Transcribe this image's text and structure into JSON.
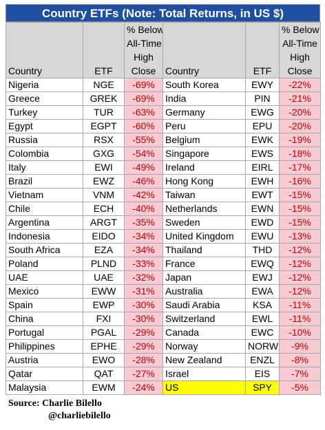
{
  "chart_data": {
    "type": "table",
    "title": "Country ETFs (Note: Total Returns, in US $)",
    "columns": [
      "Country",
      "ETF",
      "% Below All-Time High Close"
    ],
    "left": [
      {
        "country": "Nigeria",
        "etf": "NGE",
        "pct": "-69%"
      },
      {
        "country": "Greece",
        "etf": "GREK",
        "pct": "-69%"
      },
      {
        "country": "Turkey",
        "etf": "TUR",
        "pct": "-63%"
      },
      {
        "country": "Egypt",
        "etf": "EGPT",
        "pct": "-60%"
      },
      {
        "country": "Russia",
        "etf": "RSX",
        "pct": "-55%"
      },
      {
        "country": "Colombia",
        "etf": "GXG",
        "pct": "-54%"
      },
      {
        "country": "Italy",
        "etf": "EWI",
        "pct": "-49%"
      },
      {
        "country": "Brazil",
        "etf": "EWZ",
        "pct": "-46%"
      },
      {
        "country": "Vietnam",
        "etf": "VNM",
        "pct": "-42%"
      },
      {
        "country": "Chile",
        "etf": "ECH",
        "pct": "-40%"
      },
      {
        "country": "Argentina",
        "etf": "ARGT",
        "pct": "-35%"
      },
      {
        "country": "Indonesia",
        "etf": "EIDO",
        "pct": "-34%"
      },
      {
        "country": "South Africa",
        "etf": "EZA",
        "pct": "-34%"
      },
      {
        "country": "Poland",
        "etf": "PLND",
        "pct": "-33%"
      },
      {
        "country": "UAE",
        "etf": "UAE",
        "pct": "-32%"
      },
      {
        "country": "Mexico",
        "etf": "EWW",
        "pct": "-31%"
      },
      {
        "country": "Spain",
        "etf": "EWP",
        "pct": "-30%"
      },
      {
        "country": "China",
        "etf": "FXI",
        "pct": "-30%"
      },
      {
        "country": "Portugal",
        "etf": "PGAL",
        "pct": "-29%"
      },
      {
        "country": "Philippines",
        "etf": "EPHE",
        "pct": "-29%"
      },
      {
        "country": "Austria",
        "etf": "EWO",
        "pct": "-28%"
      },
      {
        "country": "Qatar",
        "etf": "QAT",
        "pct": "-27%"
      },
      {
        "country": "Malaysia",
        "etf": "EWM",
        "pct": "-24%"
      }
    ],
    "right": [
      {
        "country": "South Korea",
        "etf": "EWY",
        "pct": "-22%"
      },
      {
        "country": "India",
        "etf": "PIN",
        "pct": "-21%"
      },
      {
        "country": "Germany",
        "etf": "EWG",
        "pct": "-20%"
      },
      {
        "country": "Peru",
        "etf": "EPU",
        "pct": "-20%"
      },
      {
        "country": "Belgium",
        "etf": "EWK",
        "pct": "-19%"
      },
      {
        "country": "Singapore",
        "etf": "EWS",
        "pct": "-18%"
      },
      {
        "country": "Ireland",
        "etf": "EIRL",
        "pct": "-17%"
      },
      {
        "country": "Hong Kong",
        "etf": "EWH",
        "pct": "-16%"
      },
      {
        "country": "Taiwan",
        "etf": "EWT",
        "pct": "-15%"
      },
      {
        "country": "Netherlands",
        "etf": "EWN",
        "pct": "-15%"
      },
      {
        "country": "Sweden",
        "etf": "EWD",
        "pct": "-15%"
      },
      {
        "country": "United Kingdom",
        "etf": "EWU",
        "pct": "-13%"
      },
      {
        "country": "Thailand",
        "etf": "THD",
        "pct": "-12%"
      },
      {
        "country": "France",
        "etf": "EWQ",
        "pct": "-12%"
      },
      {
        "country": "Japan",
        "etf": "EWJ",
        "pct": "-12%"
      },
      {
        "country": "Australia",
        "etf": "EWA",
        "pct": "-12%"
      },
      {
        "country": "Saudi Arabia",
        "etf": "KSA",
        "pct": "-11%"
      },
      {
        "country": "Switzerland",
        "etf": "EWL",
        "pct": "-11%"
      },
      {
        "country": "Canada",
        "etf": "EWC",
        "pct": "-10%"
      },
      {
        "country": "Norway",
        "etf": "NORW",
        "pct": "-9%"
      },
      {
        "country": "New Zealand",
        "etf": "ENZL",
        "pct": "-8%"
      },
      {
        "country": "Israel",
        "etf": "EIS",
        "pct": "-7%"
      },
      {
        "country": "US",
        "etf": "SPY",
        "pct": "-5%",
        "highlight": true
      }
    ]
  },
  "header": {
    "country": "Country",
    "etf": "ETF",
    "pct_line1": "% Below",
    "pct_line2": "All-Time",
    "pct_line3": "High",
    "pct_line4": "Close"
  },
  "colors": {
    "title_bg": "#1f4fa0",
    "header_bg": "#d7d7d7",
    "pct_bg": "#f7c9d0",
    "pct_text": "#c40000",
    "highlight": "#ffff00"
  },
  "source": {
    "line1": "Source:  Charlie Bilello",
    "line2": "@charliebilello"
  }
}
